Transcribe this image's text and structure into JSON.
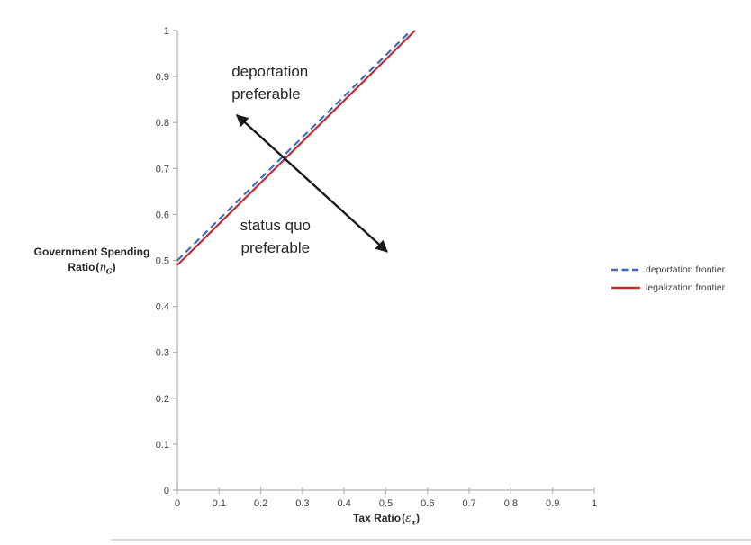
{
  "chart_data": {
    "type": "line",
    "title": "",
    "grid": false,
    "legend_position": "right-middle",
    "xlim": [
      0,
      1
    ],
    "ylim": [
      0,
      1
    ],
    "xlabel": {
      "title": "Tax Ratio",
      "open": "(",
      "symbol": "ε",
      "sub": "τ",
      "close": ")"
    },
    "ylabel": {
      "line1": "Government Spending",
      "line2": "Ratio",
      "open": "(",
      "symbol": "η",
      "sub": "G",
      "close": ")"
    },
    "x_ticks": [
      0,
      0.1,
      0.2,
      0.3,
      0.4,
      0.5,
      0.6,
      0.7,
      0.8,
      0.9,
      1
    ],
    "x_tick_labels": [
      "0",
      "0.1",
      "0.2",
      "0.3",
      "0.4",
      "0.5",
      "0.6",
      "0.7",
      "0.8",
      "0.9",
      "1"
    ],
    "y_ticks": [
      0,
      0.1,
      0.2,
      0.3,
      0.4,
      0.5,
      0.6,
      0.7,
      0.8,
      0.9,
      1
    ],
    "y_tick_labels": [
      "0",
      "0.1",
      "0.2",
      "0.3",
      "0.4",
      "0.5",
      "0.6",
      "0.7",
      "0.8",
      "0.9",
      "1"
    ],
    "series": [
      {
        "name": "deportation frontier",
        "style": "dashed",
        "color": "#3c69b9",
        "points": [
          [
            0,
            0.5
          ],
          [
            0.56,
            1.0
          ]
        ]
      },
      {
        "name": "legalization frontier",
        "style": "solid",
        "color": "#be2d32",
        "points": [
          [
            0,
            0.49
          ],
          [
            0.57,
            1.0
          ]
        ]
      }
    ],
    "annotations": [
      {
        "lines": [
          "deportation",
          "preferable"
        ],
        "x": 0.13,
        "y": 0.936,
        "align": "left"
      },
      {
        "lines": [
          "status quo",
          "preferable"
        ],
        "x": 0.235,
        "y": 0.601,
        "align": "center"
      }
    ],
    "arrows": [
      {
        "from": [
          0.503,
          0.519
        ],
        "to": [
          0.1425,
          0.816
        ],
        "double_headed": true,
        "color": "#1a1a1a"
      }
    ],
    "axis_color": "#b3b3b3",
    "tick_label_color": "#404040"
  }
}
